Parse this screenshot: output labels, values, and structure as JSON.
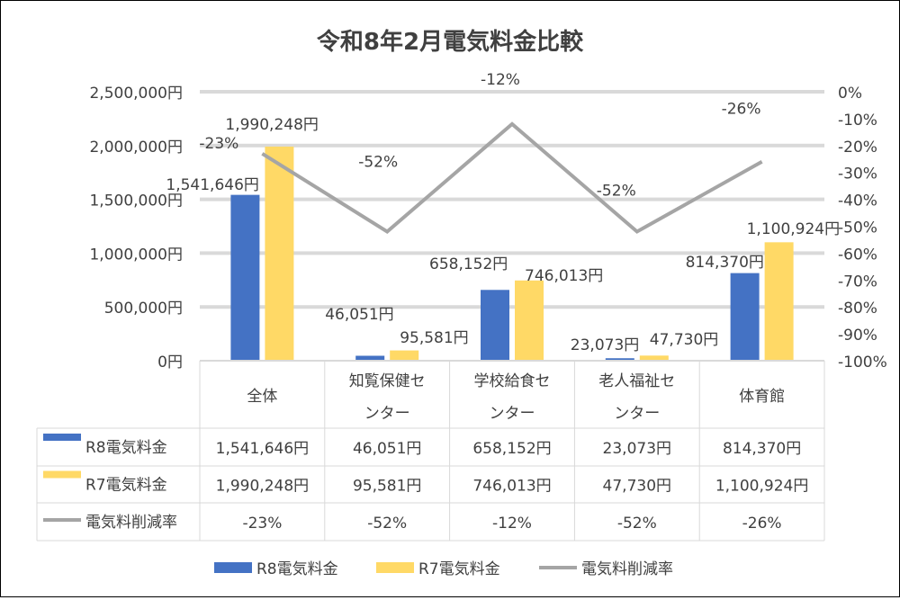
{
  "chart_data": {
    "type": "bar+line",
    "title": "令和8年2月電気料金比較",
    "categories": [
      "全体",
      "知覧保健センター",
      "学校給食センター",
      "老人福祉センター",
      "体育館"
    ],
    "category_lines": [
      [
        "全体"
      ],
      [
        "知覧保健セ",
        "ンター"
      ],
      [
        "学校給食セ",
        "ンター"
      ],
      [
        "老人福祉セ",
        "ンター"
      ],
      [
        "体育館"
      ]
    ],
    "series": [
      {
        "name": "R8電気料金",
        "type": "bar",
        "axis": "left",
        "color": "#4472C4",
        "values": [
          1541646,
          46051,
          658152,
          23073,
          814370
        ],
        "labels": [
          "1,541,646円",
          "46,051円",
          "658,152円",
          "23,073円",
          "814,370円"
        ]
      },
      {
        "name": "R7電気料金",
        "type": "bar",
        "axis": "left",
        "color": "#FFD966",
        "values": [
          1990248,
          95581,
          746013,
          47730,
          1100924
        ],
        "labels": [
          "1,990,248円",
          "95,581円",
          "746,013円",
          "47,730円",
          "1,100,924円"
        ]
      },
      {
        "name": "電気料削減率",
        "type": "line",
        "axis": "right",
        "color": "#A5A5A5",
        "values": [
          -23,
          -52,
          -12,
          -52,
          -26
        ],
        "labels": [
          "-23%",
          "-52%",
          "-12%",
          "-52%",
          "-26%"
        ]
      }
    ],
    "left_axis": {
      "range": [
        0,
        2500000
      ],
      "ticks": [
        "0円",
        "500,000円",
        "1,000,000円",
        "1,500,000円",
        "2,000,000円",
        "2,500,000円"
      ]
    },
    "right_axis": {
      "range": [
        -100,
        0
      ],
      "ticks": [
        "-100%",
        "-90%",
        "-80%",
        "-70%",
        "-60%",
        "-50%",
        "-40%",
        "-30%",
        "-20%",
        "-10%",
        "0%"
      ]
    },
    "grid": true,
    "legend": "bottom",
    "data_table": true
  }
}
